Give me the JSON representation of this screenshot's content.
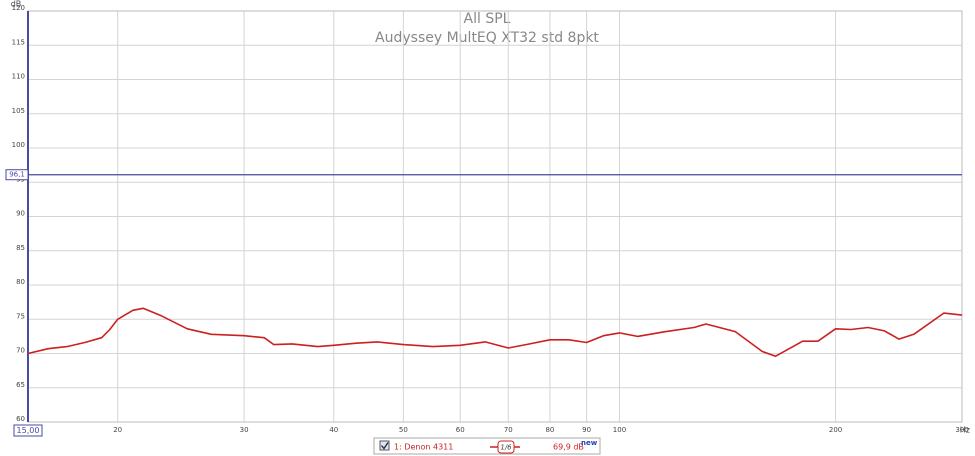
{
  "chart_data": {
    "type": "line",
    "title": "All SPL",
    "subtitle": "Audyssey MultEQ XT32 std 8pkt",
    "x_unit": "Hz",
    "y_unit": "dB",
    "log_x": true,
    "grid": true,
    "xlim": [
      15,
      300
    ],
    "ylim": [
      60,
      120
    ],
    "xticks": [
      20,
      30,
      40,
      50,
      60,
      70,
      80,
      90,
      100,
      200,
      300
    ],
    "yticks": [
      60,
      65,
      70,
      75,
      80,
      85,
      90,
      95,
      100,
      105,
      110,
      115,
      120
    ],
    "cursor": {
      "x": 15,
      "x_label": "15,00",
      "y": 96.1,
      "y_label": "96,1",
      "color": "#4a4aa0"
    },
    "x": [
      15,
      16,
      17,
      18,
      19,
      19.5,
      20,
      21,
      21.7,
      23,
      25,
      27,
      30,
      32,
      33,
      35,
      38,
      40,
      43,
      46,
      50,
      55,
      60,
      65,
      70,
      75,
      80,
      85,
      90,
      95,
      100,
      106,
      116,
      127,
      132,
      145,
      158,
      165,
      180,
      189,
      200,
      210,
      222,
      234,
      245,
      257,
      283,
      300
    ],
    "series": [
      {
        "name": "1: Denon 4311",
        "color": "#cc2020",
        "smoothing": "1/6",
        "readout": "69,9 dB",
        "badge": "new",
        "values": [
          70.0,
          70.7,
          71.0,
          71.6,
          72.3,
          73.5,
          75.0,
          76.3,
          76.6,
          75.5,
          73.6,
          72.8,
          72.6,
          72.3,
          71.3,
          71.4,
          71.0,
          71.2,
          71.5,
          71.7,
          71.3,
          71.0,
          71.2,
          71.7,
          70.8,
          71.4,
          72.0,
          72.0,
          71.6,
          72.6,
          73.0,
          72.5,
          73.2,
          73.8,
          74.3,
          73.2,
          70.3,
          69.6,
          71.8,
          71.8,
          73.6,
          73.5,
          73.8,
          73.3,
          72.1,
          72.8,
          75.9,
          75.6
        ]
      }
    ]
  }
}
